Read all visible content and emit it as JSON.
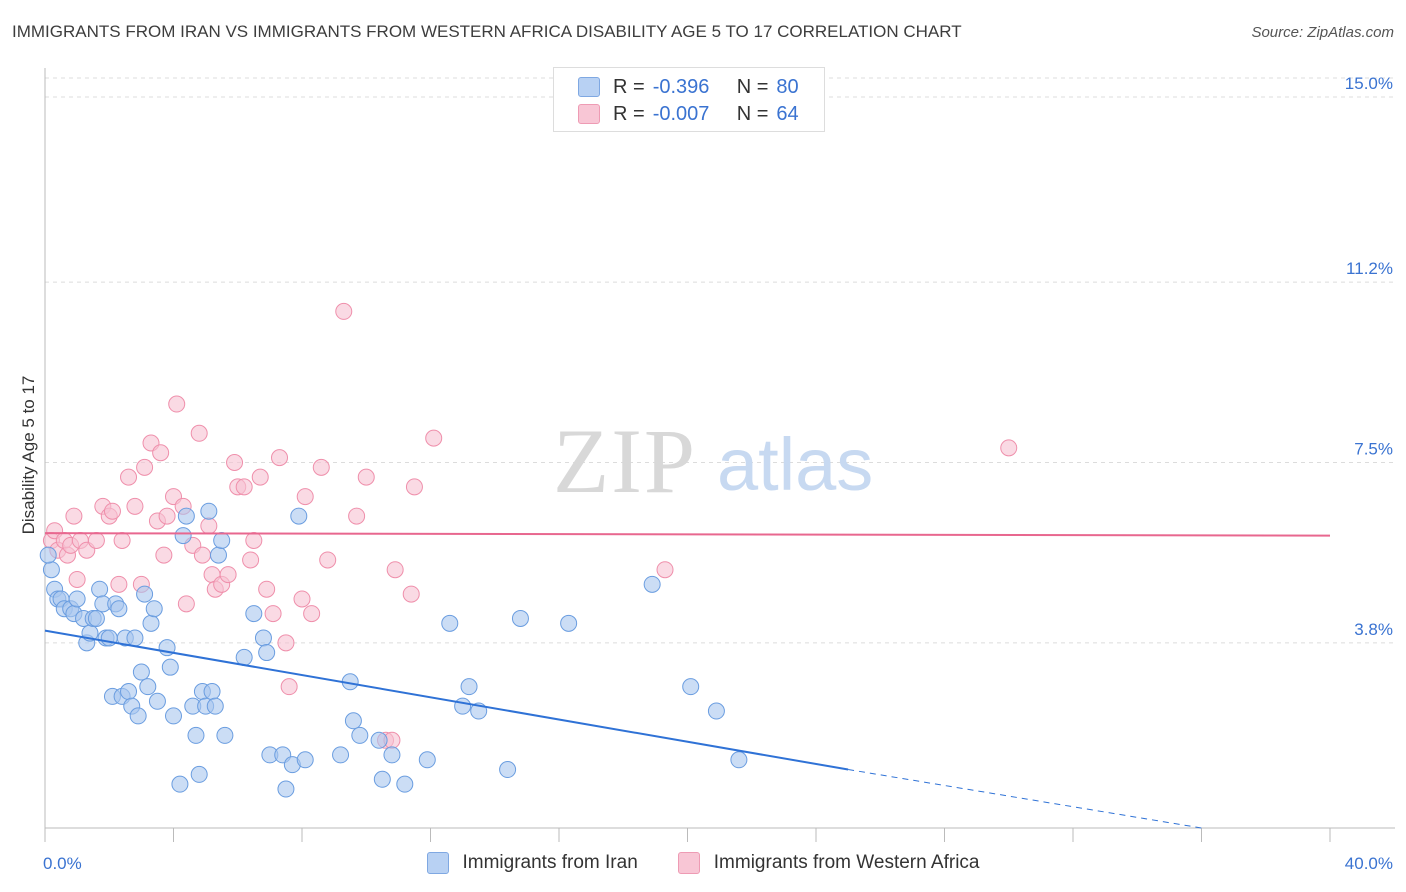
{
  "title": "IMMIGRANTS FROM IRAN VS IMMIGRANTS FROM WESTERN AFRICA DISABILITY AGE 5 TO 17 CORRELATION CHART",
  "source": "Source: ZipAtlas.com",
  "watermark": {
    "zip": "ZIP",
    "atlas": "atlas"
  },
  "legend": {
    "rows": [
      {
        "r_label": "R =",
        "r_value": "-0.396",
        "n_label": "N =",
        "n_value": "80",
        "color": "#8fb6ec"
      },
      {
        "r_label": "R =",
        "r_value": "-0.007",
        "n_label": "N =",
        "n_value": "64",
        "color": "#f4a9c0"
      }
    ]
  },
  "colors": {
    "iran": "#6a9de0",
    "iran_fill": "#a9c7ef",
    "wafrica": "#ef8fab",
    "wafrica_fill": "#f7c2d2",
    "iran_line": "#2f72d6",
    "wafrica_line": "#e8678f",
    "tick_text": "#3a73d1"
  },
  "chart_data": {
    "type": "scatter",
    "title": "IMMIGRANTS FROM IRAN VS IMMIGRANTS FROM WESTERN AFRICA DISABILITY AGE 5 TO 17 CORRELATION CHART",
    "xlabel": "",
    "ylabel": "Disability Age 5 to 17",
    "xlim": [
      0,
      40
    ],
    "ylim": [
      0,
      15.5
    ],
    "x_tick_labels": [
      "0.0%",
      "40.0%"
    ],
    "y_ticks": [
      3.8,
      7.5,
      11.2,
      15.0
    ],
    "y_tick_labels": [
      "3.8%",
      "7.5%",
      "11.2%",
      "15.0%"
    ],
    "grid": true,
    "legend_position": "top-center",
    "series": [
      {
        "name": "Immigrants from Iran",
        "points": [
          [
            0.2,
            5.3
          ],
          [
            0.3,
            4.9
          ],
          [
            0.4,
            4.7
          ],
          [
            0.5,
            4.7
          ],
          [
            0.6,
            4.5
          ],
          [
            0.8,
            4.5
          ],
          [
            0.9,
            4.4
          ],
          [
            1.0,
            4.7
          ],
          [
            1.2,
            4.3
          ],
          [
            1.3,
            3.8
          ],
          [
            1.4,
            4.0
          ],
          [
            1.5,
            4.3
          ],
          [
            1.6,
            4.3
          ],
          [
            1.7,
            4.9
          ],
          [
            1.8,
            4.6
          ],
          [
            1.9,
            3.9
          ],
          [
            2.0,
            3.9
          ],
          [
            2.1,
            2.7
          ],
          [
            2.2,
            4.6
          ],
          [
            2.3,
            4.5
          ],
          [
            2.4,
            2.7
          ],
          [
            2.5,
            3.9
          ],
          [
            2.6,
            2.8
          ],
          [
            2.7,
            2.5
          ],
          [
            2.8,
            3.9
          ],
          [
            2.9,
            2.3
          ],
          [
            3.0,
            3.2
          ],
          [
            3.1,
            4.8
          ],
          [
            3.2,
            2.9
          ],
          [
            3.3,
            4.2
          ],
          [
            3.4,
            4.5
          ],
          [
            3.5,
            2.6
          ],
          [
            3.8,
            3.7
          ],
          [
            3.9,
            3.3
          ],
          [
            4.0,
            2.3
          ],
          [
            4.2,
            0.9
          ],
          [
            4.3,
            6.0
          ],
          [
            4.4,
            6.4
          ],
          [
            4.6,
            2.5
          ],
          [
            4.7,
            1.9
          ],
          [
            4.8,
            1.1
          ],
          [
            4.9,
            2.8
          ],
          [
            5.0,
            2.5
          ],
          [
            5.1,
            6.5
          ],
          [
            5.2,
            2.8
          ],
          [
            5.3,
            2.5
          ],
          [
            5.4,
            5.6
          ],
          [
            5.5,
            5.9
          ],
          [
            5.6,
            1.9
          ],
          [
            6.2,
            3.5
          ],
          [
            6.5,
            4.4
          ],
          [
            6.8,
            3.9
          ],
          [
            6.9,
            3.6
          ],
          [
            7.0,
            1.5
          ],
          [
            7.4,
            1.5
          ],
          [
            7.5,
            0.8
          ],
          [
            7.7,
            1.3
          ],
          [
            7.9,
            6.4
          ],
          [
            8.1,
            1.4
          ],
          [
            9.2,
            1.5
          ],
          [
            9.5,
            3.0
          ],
          [
            9.6,
            2.2
          ],
          [
            9.8,
            1.9
          ],
          [
            10.4,
            1.8
          ],
          [
            10.5,
            1.0
          ],
          [
            10.8,
            1.5
          ],
          [
            11.2,
            0.9
          ],
          [
            11.9,
            1.4
          ],
          [
            12.6,
            4.2
          ],
          [
            13.0,
            2.5
          ],
          [
            13.2,
            2.9
          ],
          [
            13.5,
            2.4
          ],
          [
            14.4,
            1.2
          ],
          [
            14.8,
            4.3
          ],
          [
            16.3,
            4.2
          ],
          [
            18.9,
            5.0
          ],
          [
            20.1,
            2.9
          ],
          [
            20.9,
            2.4
          ],
          [
            21.6,
            1.4
          ],
          [
            0.1,
            5.6
          ]
        ]
      },
      {
        "name": "Immigrants from Western Africa",
        "points": [
          [
            0.2,
            5.9
          ],
          [
            0.3,
            6.1
          ],
          [
            0.4,
            5.7
          ],
          [
            0.6,
            5.9
          ],
          [
            0.7,
            5.6
          ],
          [
            0.8,
            5.8
          ],
          [
            0.9,
            6.4
          ],
          [
            1.0,
            5.1
          ],
          [
            1.1,
            5.9
          ],
          [
            1.3,
            5.7
          ],
          [
            1.6,
            5.9
          ],
          [
            1.8,
            6.6
          ],
          [
            2.0,
            6.4
          ],
          [
            2.1,
            6.5
          ],
          [
            2.3,
            5.0
          ],
          [
            2.4,
            5.9
          ],
          [
            2.6,
            7.2
          ],
          [
            2.8,
            6.6
          ],
          [
            3.0,
            5.0
          ],
          [
            3.1,
            7.4
          ],
          [
            3.3,
            7.9
          ],
          [
            3.5,
            6.3
          ],
          [
            3.6,
            7.7
          ],
          [
            3.7,
            5.6
          ],
          [
            3.8,
            6.4
          ],
          [
            4.0,
            6.8
          ],
          [
            4.1,
            8.7
          ],
          [
            4.3,
            6.6
          ],
          [
            4.4,
            4.6
          ],
          [
            4.6,
            5.8
          ],
          [
            4.8,
            8.1
          ],
          [
            4.9,
            5.6
          ],
          [
            5.1,
            6.2
          ],
          [
            5.2,
            5.2
          ],
          [
            5.3,
            4.9
          ],
          [
            5.5,
            5.0
          ],
          [
            5.7,
            5.2
          ],
          [
            5.9,
            7.5
          ],
          [
            6.0,
            7.0
          ],
          [
            6.2,
            7.0
          ],
          [
            6.4,
            5.5
          ],
          [
            6.5,
            5.9
          ],
          [
            6.7,
            7.2
          ],
          [
            6.9,
            4.9
          ],
          [
            7.1,
            4.4
          ],
          [
            7.3,
            7.6
          ],
          [
            7.5,
            3.8
          ],
          [
            7.6,
            2.9
          ],
          [
            8.0,
            4.7
          ],
          [
            8.1,
            6.8
          ],
          [
            8.3,
            4.4
          ],
          [
            8.6,
            7.4
          ],
          [
            8.8,
            5.5
          ],
          [
            9.3,
            10.6
          ],
          [
            9.7,
            6.4
          ],
          [
            10.0,
            7.2
          ],
          [
            10.6,
            1.8
          ],
          [
            10.8,
            1.8
          ],
          [
            10.9,
            5.3
          ],
          [
            11.4,
            4.8
          ],
          [
            11.5,
            7.0
          ],
          [
            12.1,
            8.0
          ],
          [
            19.3,
            5.3
          ],
          [
            30.0,
            7.8
          ]
        ]
      }
    ],
    "trend_lines": [
      {
        "name": "Immigrants from Iran",
        "x": [
          0,
          25
        ],
        "y": [
          4.05,
          1.2
        ],
        "dashed_extension_to": [
          36,
          0
        ]
      },
      {
        "name": "Immigrants from Western Africa",
        "x": [
          0,
          40
        ],
        "y": [
          6.05,
          6.0
        ]
      }
    ]
  },
  "bottom_legend": [
    {
      "label": "Immigrants from Iran",
      "color": "#a9c7ef"
    },
    {
      "label": "Immigrants from Western Africa",
      "color": "#f7c2d2"
    }
  ]
}
